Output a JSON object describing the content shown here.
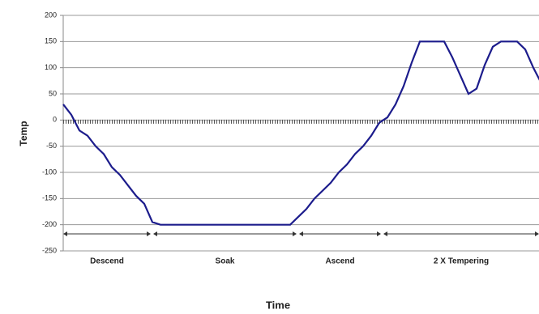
{
  "chart_data": {
    "type": "line",
    "xlabel": "Time",
    "ylabel": "Temp",
    "ylim": [
      -250,
      200
    ],
    "yticks": [
      -250,
      -200,
      -150,
      -100,
      -50,
      0,
      50,
      100,
      150,
      200
    ],
    "grid": true,
    "color": "#1c1c8c",
    "values": [
      30,
      10,
      -20,
      -30,
      -50,
      -65,
      -90,
      -105,
      -125,
      -145,
      -160,
      -195,
      -200,
      -200,
      -200,
      -200,
      -200,
      -200,
      -200,
      -200,
      -200,
      -200,
      -200,
      -200,
      -200,
      -200,
      -200,
      -200,
      -200,
      -185,
      -170,
      -150,
      -135,
      -120,
      -100,
      -85,
      -65,
      -50,
      -30,
      -5,
      5,
      30,
      65,
      110,
      150,
      150,
      150,
      150,
      120,
      85,
      50,
      60,
      105,
      140,
      150,
      150,
      150,
      135,
      100,
      70
    ],
    "annotations": [
      "Descend",
      "Soak",
      "Ascend",
      "2 X Tempering"
    ]
  }
}
